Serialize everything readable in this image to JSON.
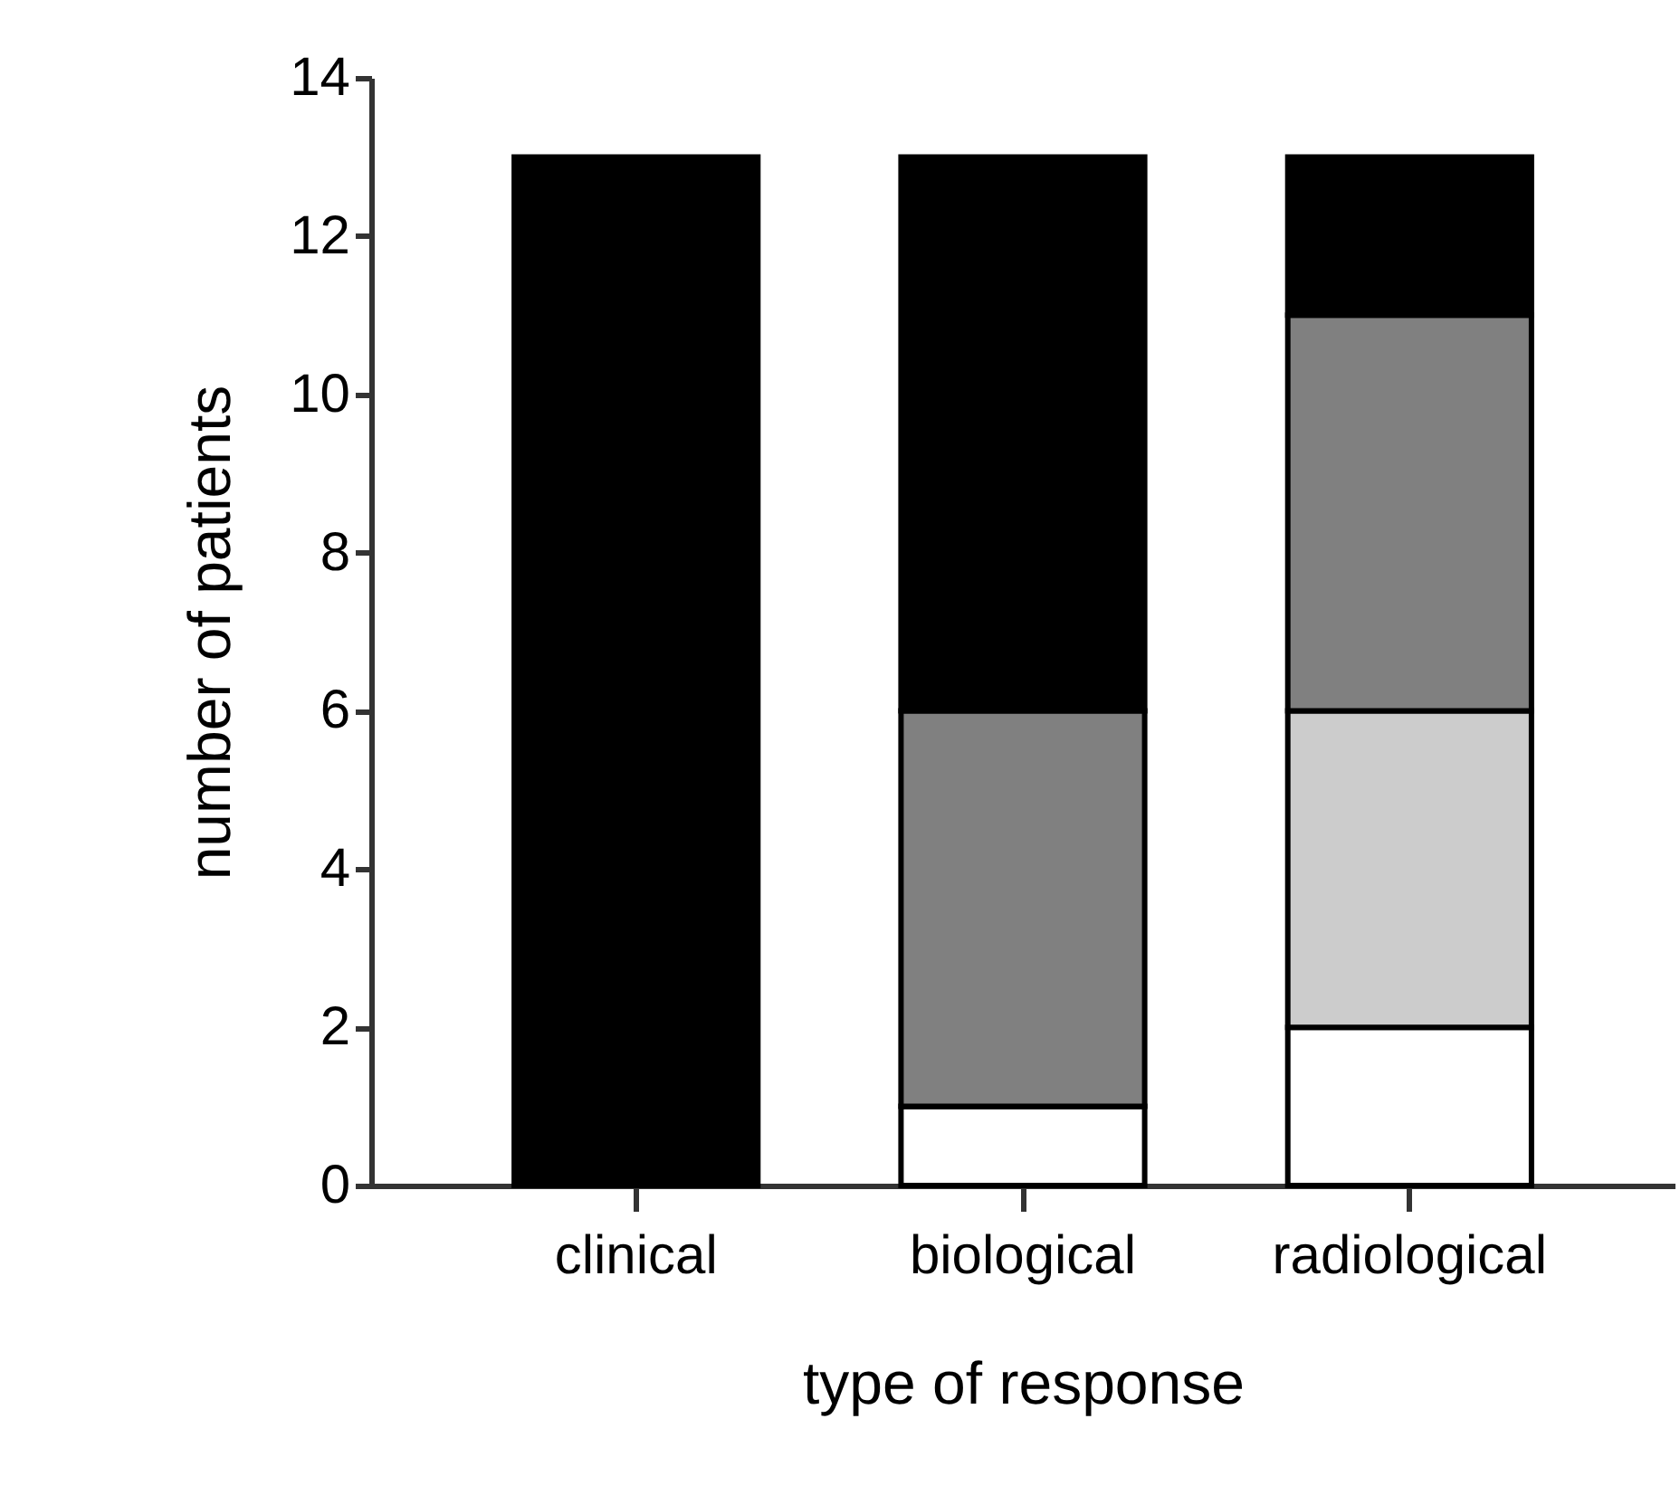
{
  "chart_data": {
    "type": "bar",
    "xlabel": "type of response",
    "ylabel": "number of patients",
    "categories": [
      "clinical",
      "biological",
      "radiological"
    ],
    "stacked": true,
    "series": [
      {
        "color": "#ffffff",
        "values": [
          0,
          1,
          2
        ]
      },
      {
        "color": "#cccccc",
        "values": [
          0,
          0,
          4
        ]
      },
      {
        "color": "#808080",
        "values": [
          0,
          5,
          5
        ]
      },
      {
        "color": "#000000",
        "values": [
          13,
          7,
          2
        ]
      }
    ],
    "ylim": [
      0,
      14
    ],
    "yticks": [
      0,
      2,
      4,
      6,
      8,
      10,
      12,
      14
    ],
    "grid": false
  }
}
